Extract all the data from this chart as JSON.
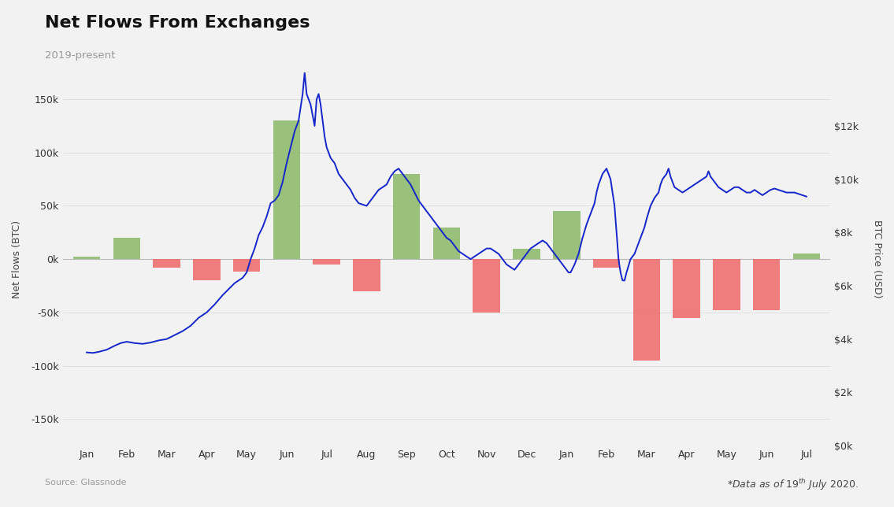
{
  "title": "Net Flows From Exchanges",
  "subtitle": "2019-present",
  "source": "Source: Glassnode",
  "ylabel_left": "Net Flows (BTC)",
  "ylabel_right": "BTC Price (USD)",
  "background_color": "#f2f2f2",
  "bar_color_positive": "#8fbc6e",
  "bar_color_negative": "#f07070",
  "line_color": "#1525cc",
  "ylim_left": [
    -175000,
    175000
  ],
  "ylim_right": [
    0,
    14000
  ],
  "bar_data": [
    {
      "x": 0,
      "value": 2000,
      "label": "Jan"
    },
    {
      "x": 1,
      "value": 20000,
      "label": "Feb"
    },
    {
      "x": 2,
      "value": -8000,
      "label": "Mar"
    },
    {
      "x": 3,
      "value": -20000,
      "label": "Apr"
    },
    {
      "x": 4,
      "value": -12000,
      "label": "May"
    },
    {
      "x": 5,
      "value": 130000,
      "label": "Jun"
    },
    {
      "x": 6,
      "value": -5000,
      "label": "Jul"
    },
    {
      "x": 7,
      "value": -30000,
      "label": "Aug"
    },
    {
      "x": 8,
      "value": 80000,
      "label": "Sep"
    },
    {
      "x": 9,
      "value": 30000,
      "label": "Oct"
    },
    {
      "x": 10,
      "value": -50000,
      "label": "Nov"
    },
    {
      "x": 11,
      "value": 10000,
      "label": "Dec"
    },
    {
      "x": 12,
      "value": 45000,
      "label": "Jan"
    },
    {
      "x": 13,
      "value": -8000,
      "label": "Feb"
    },
    {
      "x": 14,
      "value": -95000,
      "label": "Mar"
    },
    {
      "x": 15,
      "value": -55000,
      "label": "Apr"
    },
    {
      "x": 16,
      "value": -48000,
      "label": "May"
    },
    {
      "x": 17,
      "value": -48000,
      "label": "Jun"
    },
    {
      "x": 18,
      "value": 5000,
      "label": "Jul"
    }
  ],
  "x_tick_labels": [
    "Jan",
    "Feb",
    "Mar",
    "Apr",
    "May",
    "Jun",
    "Jul",
    "Aug",
    "Sep",
    "Oct",
    "Nov",
    "Dec",
    "Jan",
    "Feb",
    "Mar",
    "Apr",
    "May",
    "Jun",
    "Jul"
  ],
  "btc_price_points": [
    [
      0.0,
      3500
    ],
    [
      0.15,
      3480
    ],
    [
      0.3,
      3520
    ],
    [
      0.5,
      3600
    ],
    [
      0.7,
      3750
    ],
    [
      0.85,
      3850
    ],
    [
      1.0,
      3900
    ],
    [
      1.2,
      3850
    ],
    [
      1.4,
      3820
    ],
    [
      1.6,
      3870
    ],
    [
      1.8,
      3950
    ],
    [
      2.0,
      4000
    ],
    [
      2.2,
      4150
    ],
    [
      2.4,
      4300
    ],
    [
      2.6,
      4500
    ],
    [
      2.8,
      4800
    ],
    [
      3.0,
      5000
    ],
    [
      3.2,
      5300
    ],
    [
      3.4,
      5650
    ],
    [
      3.5,
      5800
    ],
    [
      3.6,
      5950
    ],
    [
      3.7,
      6100
    ],
    [
      3.8,
      6200
    ],
    [
      3.9,
      6300
    ],
    [
      4.0,
      6500
    ],
    [
      4.1,
      7000
    ],
    [
      4.2,
      7400
    ],
    [
      4.3,
      7900
    ],
    [
      4.4,
      8200
    ],
    [
      4.5,
      8600
    ],
    [
      4.6,
      9100
    ],
    [
      4.7,
      9200
    ],
    [
      4.8,
      9400
    ],
    [
      4.9,
      9900
    ],
    [
      5.0,
      10600
    ],
    [
      5.1,
      11200
    ],
    [
      5.2,
      11800
    ],
    [
      5.3,
      12200
    ],
    [
      5.4,
      13200
    ],
    [
      5.45,
      14000
    ],
    [
      5.5,
      13200
    ],
    [
      5.6,
      12800
    ],
    [
      5.7,
      12000
    ],
    [
      5.75,
      13000
    ],
    [
      5.8,
      13200
    ],
    [
      5.85,
      12800
    ],
    [
      5.9,
      12200
    ],
    [
      5.95,
      11600
    ],
    [
      6.0,
      11200
    ],
    [
      6.1,
      10800
    ],
    [
      6.2,
      10600
    ],
    [
      6.3,
      10200
    ],
    [
      6.4,
      10000
    ],
    [
      6.5,
      9800
    ],
    [
      6.6,
      9600
    ],
    [
      6.7,
      9300
    ],
    [
      6.8,
      9100
    ],
    [
      7.0,
      9000
    ],
    [
      7.1,
      9200
    ],
    [
      7.2,
      9400
    ],
    [
      7.3,
      9600
    ],
    [
      7.4,
      9700
    ],
    [
      7.5,
      9800
    ],
    [
      7.6,
      10100
    ],
    [
      7.7,
      10300
    ],
    [
      7.8,
      10400
    ],
    [
      7.9,
      10200
    ],
    [
      8.0,
      10000
    ],
    [
      8.1,
      9800
    ],
    [
      8.2,
      9500
    ],
    [
      8.3,
      9200
    ],
    [
      8.4,
      9000
    ],
    [
      8.5,
      8800
    ],
    [
      8.6,
      8600
    ],
    [
      8.7,
      8400
    ],
    [
      8.8,
      8200
    ],
    [
      8.9,
      8000
    ],
    [
      9.0,
      7800
    ],
    [
      9.1,
      7700
    ],
    [
      9.2,
      7500
    ],
    [
      9.3,
      7300
    ],
    [
      9.4,
      7200
    ],
    [
      9.5,
      7100
    ],
    [
      9.6,
      7000
    ],
    [
      9.7,
      7100
    ],
    [
      9.8,
      7200
    ],
    [
      9.9,
      7300
    ],
    [
      10.0,
      7400
    ],
    [
      10.1,
      7400
    ],
    [
      10.2,
      7300
    ],
    [
      10.3,
      7200
    ],
    [
      10.4,
      7000
    ],
    [
      10.5,
      6800
    ],
    [
      10.6,
      6700
    ],
    [
      10.7,
      6600
    ],
    [
      10.75,
      6700
    ],
    [
      10.8,
      6800
    ],
    [
      10.9,
      7000
    ],
    [
      11.0,
      7200
    ],
    [
      11.1,
      7400
    ],
    [
      11.2,
      7500
    ],
    [
      11.3,
      7600
    ],
    [
      11.4,
      7700
    ],
    [
      11.5,
      7600
    ],
    [
      11.6,
      7400
    ],
    [
      11.7,
      7200
    ],
    [
      11.8,
      7000
    ],
    [
      11.9,
      6800
    ],
    [
      12.0,
      6600
    ],
    [
      12.05,
      6500
    ],
    [
      12.1,
      6500
    ],
    [
      12.2,
      6800
    ],
    [
      12.3,
      7200
    ],
    [
      12.4,
      7800
    ],
    [
      12.5,
      8300
    ],
    [
      12.6,
      8700
    ],
    [
      12.7,
      9100
    ],
    [
      12.75,
      9500
    ],
    [
      12.8,
      9800
    ],
    [
      12.9,
      10200
    ],
    [
      13.0,
      10400
    ],
    [
      13.1,
      10000
    ],
    [
      13.15,
      9500
    ],
    [
      13.2,
      9000
    ],
    [
      13.25,
      8000
    ],
    [
      13.3,
      7000
    ],
    [
      13.35,
      6500
    ],
    [
      13.4,
      6200
    ],
    [
      13.45,
      6200
    ],
    [
      13.5,
      6500
    ],
    [
      13.6,
      7000
    ],
    [
      13.7,
      7200
    ],
    [
      13.75,
      7400
    ],
    [
      13.8,
      7600
    ],
    [
      13.85,
      7800
    ],
    [
      13.9,
      8000
    ],
    [
      13.95,
      8200
    ],
    [
      14.0,
      8500
    ],
    [
      14.1,
      9000
    ],
    [
      14.2,
      9300
    ],
    [
      14.3,
      9500
    ],
    [
      14.35,
      9800
    ],
    [
      14.4,
      10000
    ],
    [
      14.5,
      10200
    ],
    [
      14.55,
      10400
    ],
    [
      14.6,
      10100
    ],
    [
      14.65,
      9900
    ],
    [
      14.7,
      9700
    ],
    [
      14.8,
      9600
    ],
    [
      14.9,
      9500
    ],
    [
      15.0,
      9600
    ],
    [
      15.1,
      9700
    ],
    [
      15.2,
      9800
    ],
    [
      15.3,
      9900
    ],
    [
      15.4,
      10000
    ],
    [
      15.5,
      10100
    ],
    [
      15.55,
      10300
    ],
    [
      15.6,
      10100
    ],
    [
      15.7,
      9900
    ],
    [
      15.8,
      9700
    ],
    [
      15.9,
      9600
    ],
    [
      16.0,
      9500
    ],
    [
      16.1,
      9600
    ],
    [
      16.2,
      9700
    ],
    [
      16.3,
      9700
    ],
    [
      16.4,
      9600
    ],
    [
      16.5,
      9500
    ],
    [
      16.6,
      9500
    ],
    [
      16.7,
      9600
    ],
    [
      16.8,
      9500
    ],
    [
      16.9,
      9400
    ],
    [
      17.0,
      9500
    ],
    [
      17.1,
      9600
    ],
    [
      17.2,
      9650
    ],
    [
      17.3,
      9600
    ],
    [
      17.4,
      9550
    ],
    [
      17.5,
      9500
    ],
    [
      17.6,
      9500
    ],
    [
      17.7,
      9500
    ],
    [
      17.8,
      9450
    ],
    [
      17.9,
      9400
    ],
    [
      18.0,
      9350
    ]
  ]
}
